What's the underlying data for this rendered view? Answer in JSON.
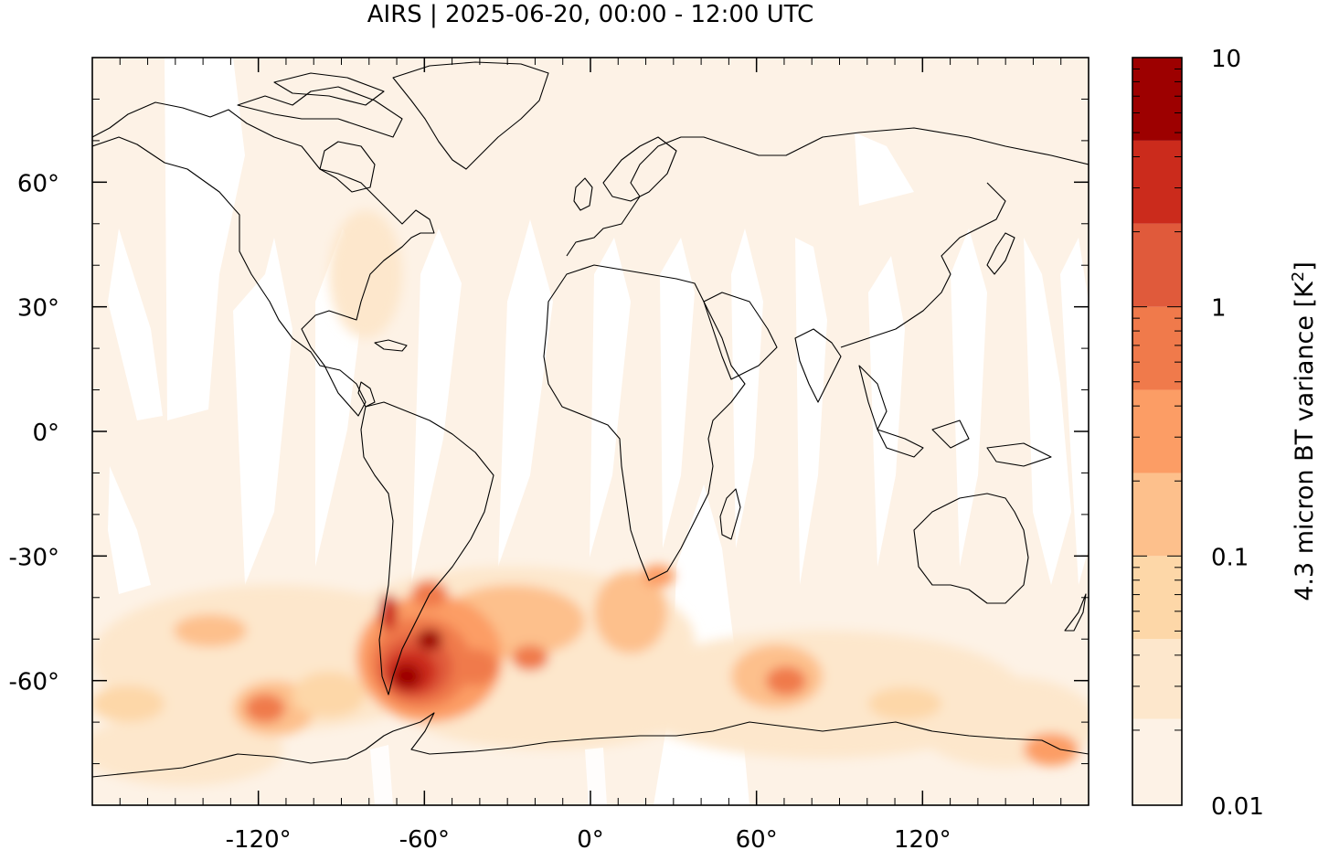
{
  "title": "AIRS | 2025-06-20, 00:00 - 12:00 UTC",
  "colorbar": {
    "label": "4.3 micron BT variance [K",
    "label_sup": "2",
    "label_close": "]",
    "scale": "log",
    "range": [
      0.01,
      10
    ],
    "tick_labels": [
      "10",
      "1",
      "0.1",
      "0.01"
    ],
    "levels": [
      {
        "upper": 0.0222,
        "color": "#fdf2e6"
      },
      {
        "upper": 0.0464,
        "color": "#fde7cc"
      },
      {
        "upper": 0.1,
        "color": "#fdd7a8"
      },
      {
        "upper": 0.2154,
        "color": "#fdc08c"
      },
      {
        "upper": 0.4642,
        "color": "#fc9d65"
      },
      {
        "upper": 1.0,
        "color": "#f07a4b"
      },
      {
        "upper": 2.1544,
        "color": "#e05a3b"
      },
      {
        "upper": 4.6416,
        "color": "#cb2b1c"
      },
      {
        "upper": 10.0,
        "color": "#9d0000"
      }
    ]
  },
  "map": {
    "projection": "plate carree",
    "lon_range": [
      -180,
      180
    ],
    "lat_range": [
      -90,
      90
    ],
    "x_ticks": [
      {
        "value": -120,
        "label": "-120°"
      },
      {
        "value": -60,
        "label": "-60°"
      },
      {
        "value": 0,
        "label": "0°"
      },
      {
        "value": 60,
        "label": "60°"
      },
      {
        "value": 120,
        "label": "120°"
      }
    ],
    "y_ticks": [
      {
        "value": 60,
        "label": "60°"
      },
      {
        "value": 30,
        "label": "30°"
      },
      {
        "value": 0,
        "label": "0°"
      },
      {
        "value": -30,
        "label": "-30°"
      },
      {
        "value": -60,
        "label": "-60°"
      }
    ],
    "background_color": "#fdf2e6",
    "orbit_gap_color": "#ffffff",
    "coastline_color": "#000000",
    "max_region": "southern South America / Drake Passage"
  }
}
